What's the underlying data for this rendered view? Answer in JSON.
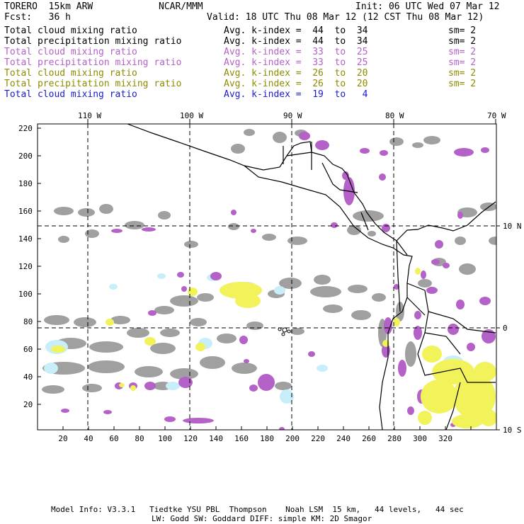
{
  "header": {
    "model": "TORERO  15km ARW",
    "org": "NCAR/MMM",
    "init": "Init: 06 UTC Wed 07 Mar 12",
    "fcst": "Fcst:   36 h",
    "valid": "Valid: 18 UTC Thu 08 Mar 12 (12 CST Thu 08 Mar 12)"
  },
  "legend": [
    {
      "field": "Total cloud mixing ratio",
      "index": "Avg. k-index =  44  to  34",
      "sm": "sm= 2",
      "color": "#000000"
    },
    {
      "field": "Total precipitation mixing ratio",
      "index": "Avg. k-index =  44  to  34",
      "sm": "sm= 2",
      "color": "#000000"
    },
    {
      "field": "Total cloud mixing ratio",
      "index": "Avg. k-index =  33  to  25",
      "sm": "sm= 2",
      "color": "#b461c8"
    },
    {
      "field": "Total precipitation mixing ratio",
      "index": "Avg. k-index =  33  to  25",
      "sm": "sm= 2",
      "color": "#b461c8"
    },
    {
      "field": "Total cloud mixing ratio",
      "index": "Avg. k-index =  26  to  20",
      "sm": "sm= 2",
      "color": "#8c8c00"
    },
    {
      "field": "Total precipitation mixing ratio",
      "index": "Avg. k-index =  26  to  20",
      "sm": "sm= 2",
      "color": "#8c8c00"
    },
    {
      "field": "Total cloud mixing ratio",
      "index": "Avg. k-index =  19  to   4",
      "sm": "",
      "color": "#1a1ad0"
    }
  ],
  "lon_labels": [
    "110 W",
    "100 W",
    "90 W",
    "80 W",
    "70 W"
  ],
  "lat_labels": [
    "10 N",
    "0",
    "10 S"
  ],
  "y_ticks": [
    "220",
    "200",
    "180",
    "160",
    "140",
    "120",
    "100",
    "80",
    "60",
    "40",
    "20"
  ],
  "x_ticks": [
    "20",
    "40",
    "60",
    "80",
    "100",
    "120",
    "140",
    "160",
    "180",
    "200",
    "220",
    "240",
    "260",
    "280",
    "300",
    "320"
  ],
  "footer": {
    "line1": "Model Info: V3.3.1   Tiedtke YSU PBL  Thompson    Noah LSM  15 km,   44 levels,   44 sec",
    "line2": "LW: Godd SW: Goddard DIFF: simple KM: 2D Smagor"
  },
  "colors": {
    "gray": "#a0a0a0",
    "purple": "#b461c8",
    "yellow": "#f2f25a",
    "lightblue": "#c8eefa"
  }
}
